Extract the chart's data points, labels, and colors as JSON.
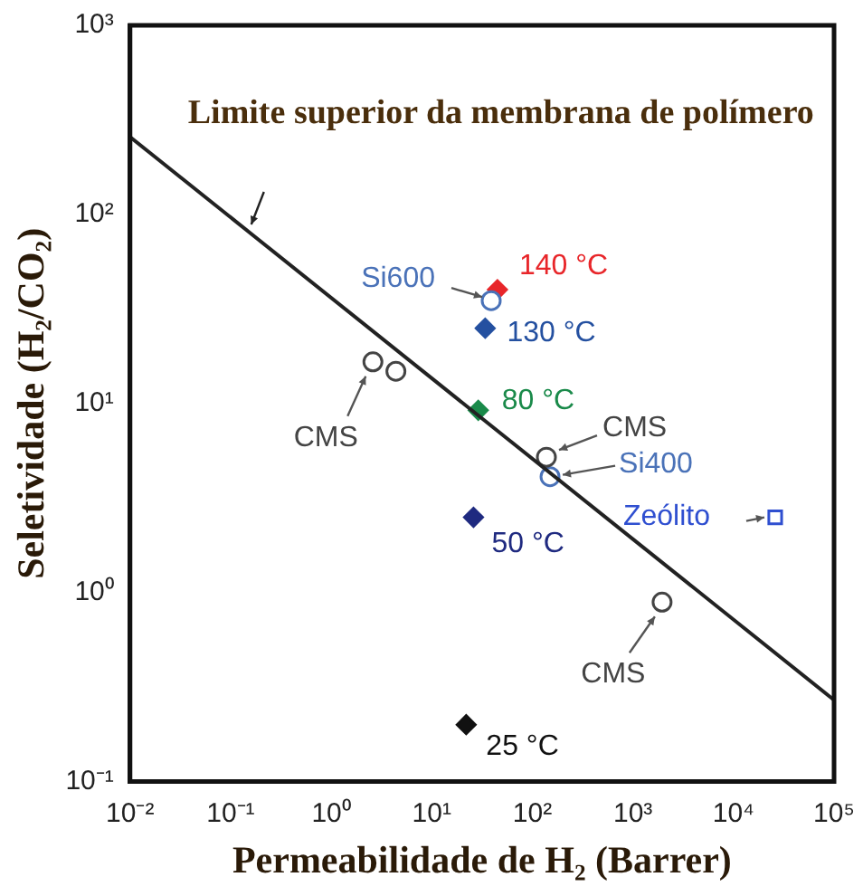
{
  "chart_data": {
    "type": "scatter",
    "xlabel": "Permeabilidade de H₂ (Barrer)",
    "ylabel": "Seletividade (H₂/CO₂)",
    "log": "xy",
    "grid": false,
    "legend": false,
    "xlim": [
      0.01,
      100000
    ],
    "ylim": [
      0.1,
      1000
    ],
    "xticks": [
      {
        "value": 0.01,
        "label": "10⁻²"
      },
      {
        "value": 0.1,
        "label": "10⁻¹"
      },
      {
        "value": 1,
        "label": "10⁰"
      },
      {
        "value": 10,
        "label": "10¹"
      },
      {
        "value": 100,
        "label": "10²"
      },
      {
        "value": 1000,
        "label": "10³"
      },
      {
        "value": 10000,
        "label": "10⁴"
      },
      {
        "value": 100000,
        "label": "10⁵"
      }
    ],
    "yticks": [
      {
        "value": 0.1,
        "label": "10⁻¹"
      },
      {
        "value": 1,
        "label": "10⁰"
      },
      {
        "value": 10,
        "label": "10¹"
      },
      {
        "value": 100,
        "label": "10²"
      },
      {
        "value": 1000,
        "label": "10³"
      }
    ],
    "series": [
      {
        "name": "Limite superior da membrana de polímero",
        "type": "line",
        "marker": "none",
        "line_style": "solid",
        "color": "#222222",
        "x": [
          0.01,
          100000
        ],
        "values": [
          257,
          0.27
        ]
      },
      {
        "name": "Si600",
        "marker": "circle",
        "color": "#4a72b8",
        "x": [
          39
        ],
        "values": [
          35
        ]
      },
      {
        "name": "140 °C",
        "marker": "diamond",
        "color": "#e8262a",
        "x": [
          45
        ],
        "values": [
          40
        ]
      },
      {
        "name": "130 °C",
        "marker": "diamond",
        "color": "#2450a0",
        "x": [
          34
        ],
        "values": [
          25
        ]
      },
      {
        "name": "CMS",
        "marker": "circle",
        "color": "#444444",
        "x": [
          2.6,
          4.4,
          138,
          1950
        ],
        "values": [
          16.6,
          14.8,
          5.2,
          0.89
        ]
      },
      {
        "name": "80 °C",
        "marker": "diamond",
        "color": "#1a8a4a",
        "x": [
          29
        ],
        "values": [
          9.2
        ]
      },
      {
        "name": "Si400",
        "marker": "circle",
        "color": "#4a72b8",
        "x": [
          150
        ],
        "values": [
          4.1
        ]
      },
      {
        "name": "Zeólito",
        "marker": "square",
        "color": "#2f4fd0",
        "x": [
          26000
        ],
        "values": [
          2.5
        ]
      },
      {
        "name": "50 °C",
        "marker": "diamond",
        "color": "#1f2a80",
        "x": [
          26
        ],
        "values": [
          2.5
        ]
      },
      {
        "name": "25 °C",
        "marker": "diamond",
        "color": "#111111",
        "x": [
          22
        ],
        "values": [
          0.2
        ]
      }
    ]
  }
}
